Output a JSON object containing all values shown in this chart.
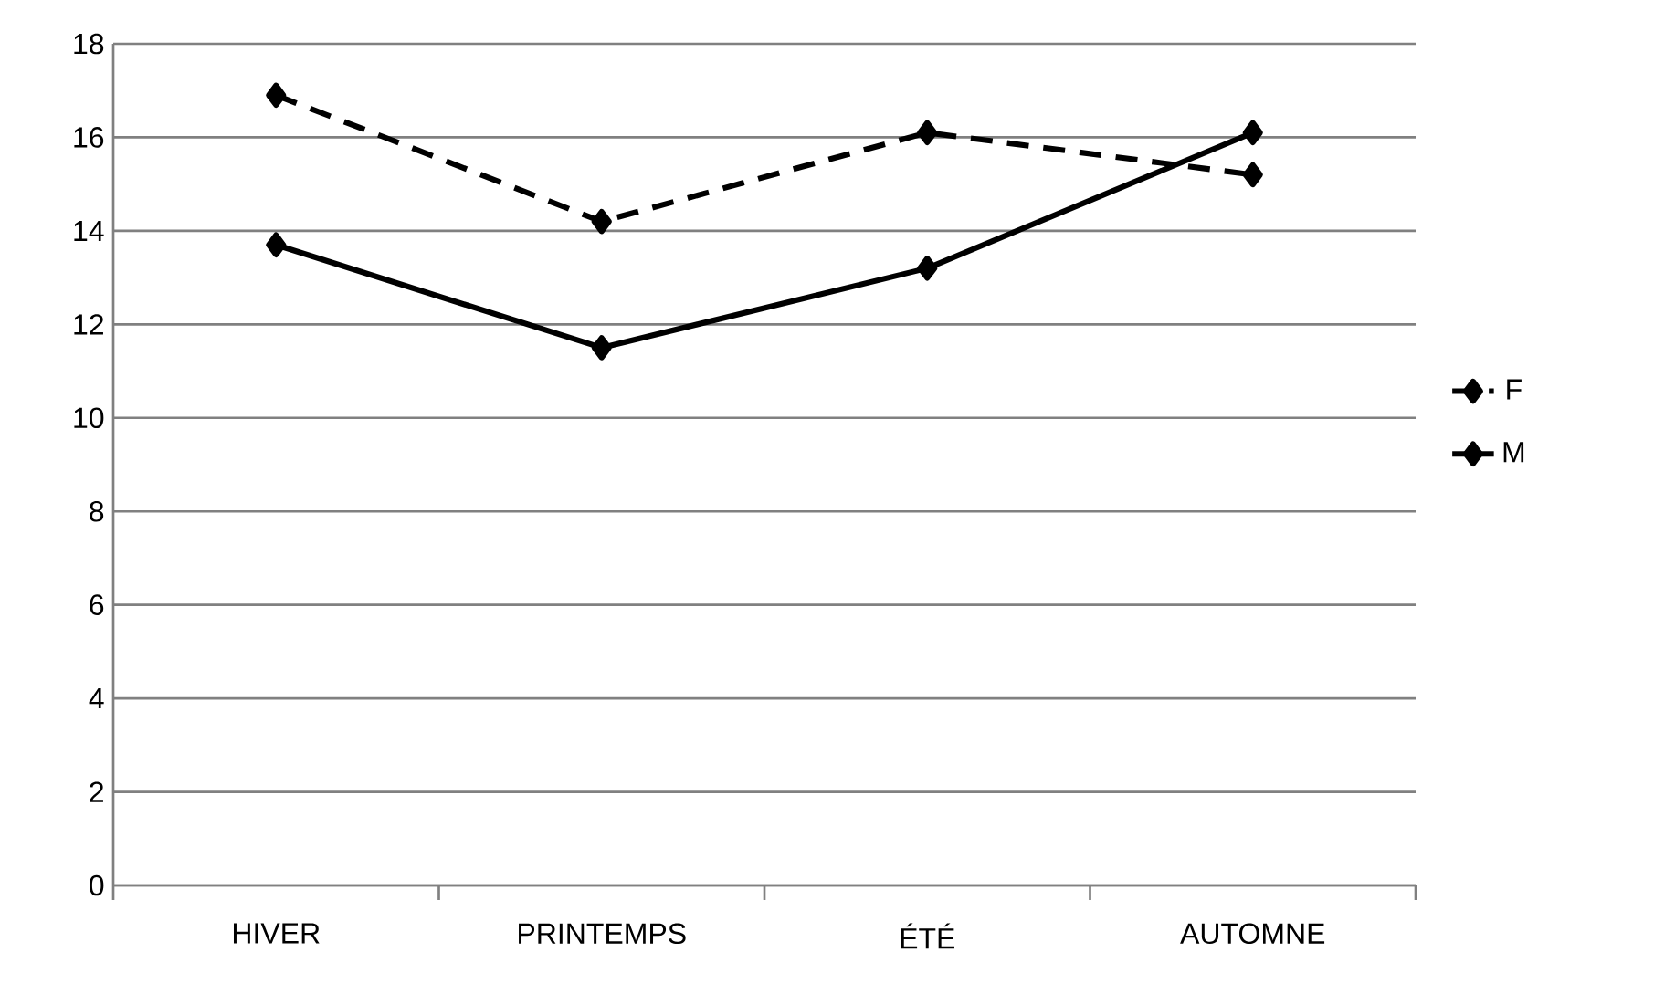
{
  "chart_data": {
    "type": "line",
    "categories": [
      "HIVER",
      "PRINTEMPS",
      "ÉTÉ",
      "AUTOMNE"
    ],
    "series": [
      {
        "name": "F",
        "color": "#000000",
        "line_style": "dashed",
        "values": [
          16.9,
          14.2,
          16.1,
          15.2
        ]
      },
      {
        "name": "M",
        "color": "#000000",
        "line_style": "solid",
        "values": [
          13.7,
          11.5,
          13.2,
          16.1
        ]
      }
    ],
    "marker": "diamond",
    "ylim": [
      0,
      18
    ],
    "yticks": [
      0,
      2,
      4,
      6,
      8,
      10,
      12,
      14,
      16,
      18
    ],
    "grid": "y",
    "legend": "right"
  }
}
